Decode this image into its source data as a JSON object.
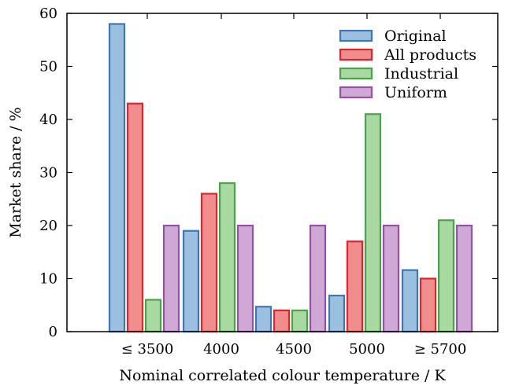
{
  "chart_data": {
    "type": "bar",
    "title": "",
    "xlabel": "Nominal correlated colour temperature / K",
    "ylabel": "Market share / %",
    "ylim": [
      0,
      60
    ],
    "yticks": [
      0,
      10,
      20,
      30,
      40,
      50,
      60
    ],
    "grid": false,
    "legend_position": "top-right",
    "categories": [
      "≤ 3500",
      "4000",
      "4500",
      "5000",
      "≥ 5700"
    ],
    "series": [
      {
        "name": "Original",
        "values": [
          58,
          19,
          4.7,
          6.8,
          11.6
        ],
        "fill": "#9bbfdf",
        "stroke": "#3b78b8"
      },
      {
        "name": "All products",
        "values": [
          43,
          26,
          4,
          17,
          10
        ],
        "fill": "#f08d8d",
        "stroke": "#e0242a"
      },
      {
        "name": "Industrial",
        "values": [
          6,
          28,
          4,
          41,
          21
        ],
        "fill": "#a8d9a0",
        "stroke": "#4aa24a"
      },
      {
        "name": "Uniform",
        "values": [
          20,
          20,
          20,
          20,
          20
        ],
        "fill": "#cfa8d6",
        "stroke": "#9452a6"
      }
    ]
  }
}
